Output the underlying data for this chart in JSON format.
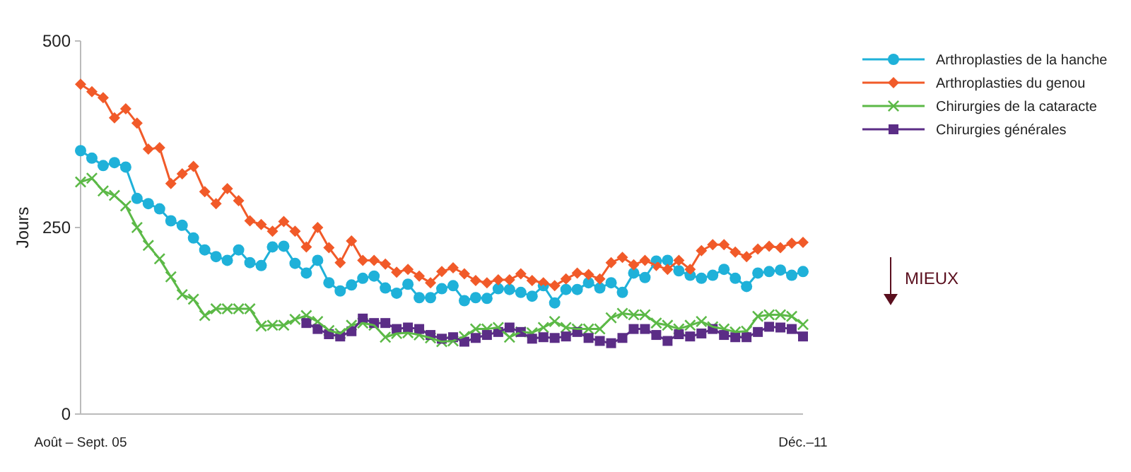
{
  "chart_data": {
    "type": "line",
    "ylabel": "Jours",
    "categories": [
      "Août – Sept. 05",
      null,
      null,
      null,
      null,
      null,
      null,
      null,
      null,
      null,
      null,
      null,
      null,
      null,
      null,
      null,
      null,
      null,
      null,
      null,
      null,
      null,
      null,
      null,
      null,
      null,
      null,
      null,
      null,
      null,
      null,
      null,
      null,
      null,
      null,
      null,
      null,
      null,
      null,
      null,
      null,
      null,
      null,
      null,
      null,
      null,
      null,
      null,
      null,
      null,
      null,
      null,
      null,
      null,
      null,
      null,
      null,
      null,
      null,
      null,
      null,
      null,
      null,
      null,
      "Déc.–11"
    ],
    "series": [
      {
        "name": "Arthroplasties de la hanche",
        "color": "#1fb1d9",
        "marker": "circle",
        "values": [
          353,
          343,
          333,
          337,
          331,
          289,
          282,
          275,
          259,
          253,
          236,
          220,
          211,
          206,
          220,
          203,
          199,
          224,
          225,
          202,
          189,
          206,
          176,
          165,
          173,
          182,
          185,
          169,
          162,
          174,
          156,
          156,
          168,
          172,
          152,
          156,
          155,
          168,
          167,
          163,
          158,
          172,
          149,
          167,
          167,
          176,
          169,
          176,
          163,
          189,
          183,
          205,
          206,
          192,
          186,
          182,
          186,
          194,
          182,
          171,
          189,
          191,
          193,
          186,
          191
        ]
      },
      {
        "name": "Arthroplasties du genou",
        "color": "#f15a29",
        "marker": "diamond",
        "values": [
          442,
          432,
          424,
          397,
          409,
          390,
          355,
          357,
          309,
          322,
          332,
          298,
          282,
          302,
          286,
          259,
          254,
          245,
          258,
          245,
          224,
          250,
          223,
          203,
          232,
          206,
          206,
          201,
          190,
          194,
          185,
          176,
          191,
          196,
          188,
          179,
          176,
          180,
          180,
          188,
          179,
          176,
          172,
          181,
          189,
          187,
          181,
          203,
          210,
          200,
          206,
          199,
          194,
          206,
          194,
          219,
          227,
          227,
          217,
          211,
          221,
          225,
          223,
          229,
          230
        ]
      },
      {
        "name": "Chirurgies de la cataracte",
        "color": "#5cb947",
        "marker": "cross",
        "values": [
          311,
          316,
          299,
          293,
          279,
          250,
          226,
          208,
          184,
          160,
          154,
          132,
          141,
          141,
          141,
          141,
          118,
          119,
          119,
          127,
          132,
          124,
          112,
          108,
          119,
          122,
          119,
          103,
          108,
          109,
          106,
          102,
          97,
          98,
          104,
          114,
          114,
          116,
          103,
          110,
          109,
          116,
          124,
          116,
          114,
          114,
          114,
          129,
          135,
          133,
          133,
          122,
          119,
          114,
          119,
          124,
          117,
          114,
          110,
          111,
          131,
          133,
          133,
          131,
          120
        ]
      },
      {
        "name": "Chirurgies générales",
        "color": "#5b2d86",
        "marker": "square",
        "values": [
          null,
          null,
          null,
          null,
          null,
          null,
          null,
          null,
          null,
          null,
          null,
          null,
          null,
          null,
          null,
          null,
          null,
          null,
          null,
          null,
          122,
          114,
          107,
          104,
          111,
          128,
          122,
          122,
          114,
          116,
          114,
          106,
          101,
          103,
          97,
          102,
          106,
          110,
          116,
          110,
          101,
          103,
          102,
          104,
          110,
          102,
          98,
          95,
          102,
          114,
          114,
          106,
          98,
          107,
          104,
          108,
          114,
          106,
          103,
          103,
          110,
          117,
          116,
          114,
          104
        ]
      }
    ],
    "ylim": [
      0,
      500
    ],
    "yticks": [
      0,
      250,
      500
    ],
    "grid": false,
    "legend": "top right",
    "line_style": "solid",
    "annotations": [
      "MIEUX"
    ]
  }
}
